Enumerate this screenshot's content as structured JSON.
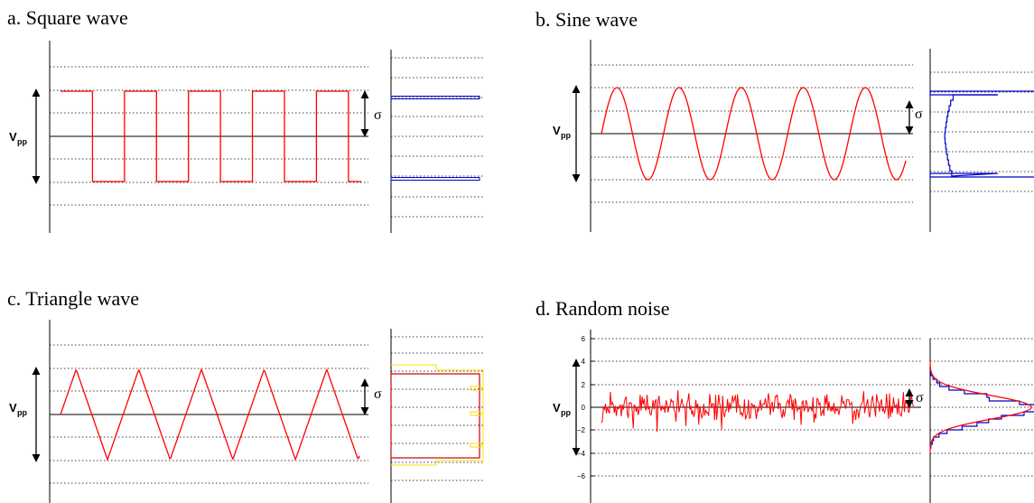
{
  "panels": [
    {
      "title": "a. Square wave",
      "vpp_label": "V",
      "vpp_sub": "pp",
      "sigma_label": "σ",
      "kind": "square",
      "wave_color": "#ff0000",
      "hist_color": "#0000cc"
    },
    {
      "title": "b. Sine wave",
      "vpp_label": "V",
      "vpp_sub": "pp",
      "sigma_label": "σ",
      "kind": "sine",
      "wave_color": "#ff0000",
      "hist_color": "#0000cc"
    },
    {
      "title": "c. Triangle wave",
      "vpp_label": "V",
      "vpp_sub": "pp",
      "sigma_label": "σ",
      "kind": "triangle",
      "wave_color": "#ff0000",
      "hist_color": "#ffdd00",
      "hist_outline_color": "#cc0000"
    },
    {
      "title": "d. Random noise",
      "vpp_label": "V",
      "vpp_sub": "pp",
      "sigma_label": "σ",
      "kind": "noise",
      "wave_color": "#ff0000",
      "hist_color": "#0000cc",
      "fit_color": "#ff0000",
      "y_ticks": [
        "6",
        "4",
        "2",
        "0",
        "−2",
        "−4",
        "−6"
      ]
    }
  ],
  "colors": {
    "axis": "#000000",
    "grid": "#000000",
    "arrow": "#000000"
  }
}
